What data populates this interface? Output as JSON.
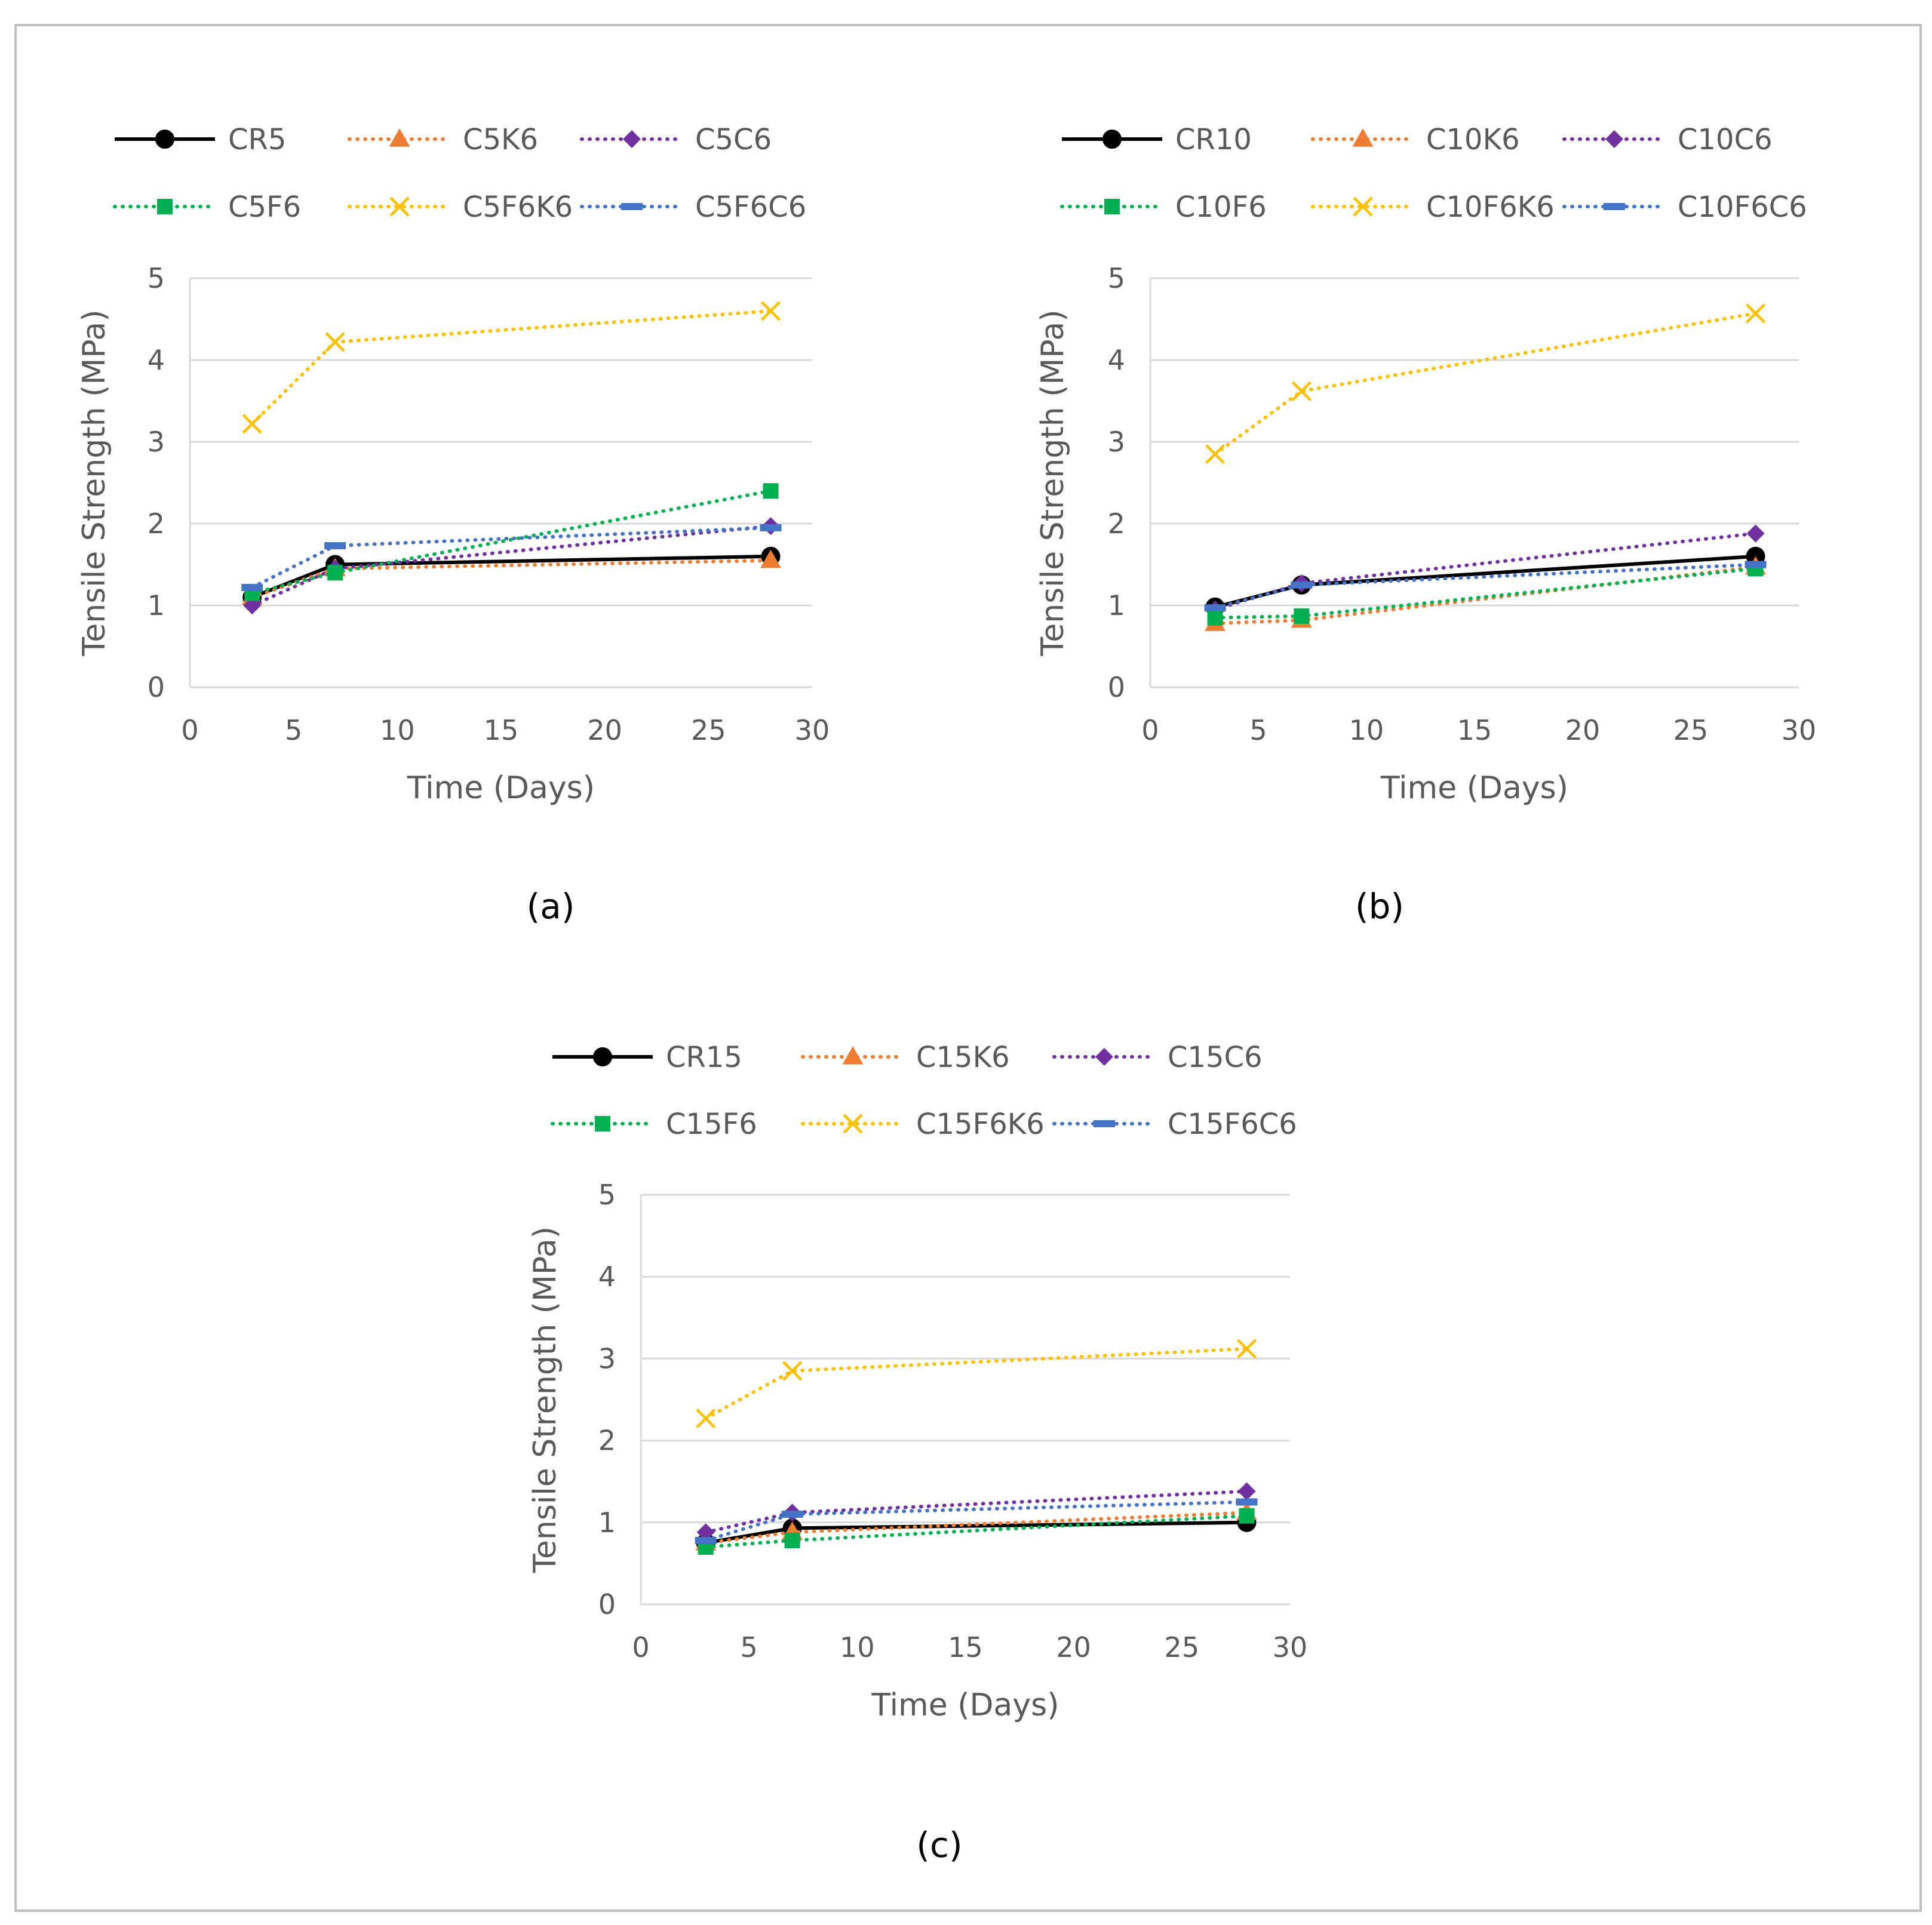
{
  "figure": {
    "border_color": "#bfbfbf"
  },
  "chart_data": [
    {
      "type": "line",
      "panel_label": "(a)",
      "xlabel": "Time (Days)",
      "ylabel": "Tensile Strength (MPa)",
      "xlim": [
        0,
        30
      ],
      "ylim": [
        0,
        5
      ],
      "xticks": [
        0,
        5,
        10,
        15,
        20,
        25,
        30
      ],
      "yticks": [
        0,
        1,
        2,
        3,
        4,
        5
      ],
      "grid": true,
      "legend_position": "top",
      "x": [
        3,
        7,
        28
      ],
      "series": [
        {
          "name": "CR5",
          "values": [
            1.1,
            1.5,
            1.6
          ],
          "color": "#000000",
          "style": "solid",
          "marker": "circle"
        },
        {
          "name": "C5K6",
          "values": [
            1.1,
            1.45,
            1.55
          ],
          "color": "#ed7d31",
          "style": "dotted",
          "marker": "triangle"
        },
        {
          "name": "C5C6",
          "values": [
            1.0,
            1.45,
            1.97
          ],
          "color": "#7030a0",
          "style": "dotted",
          "marker": "diamond"
        },
        {
          "name": "C5F6",
          "values": [
            1.15,
            1.4,
            2.4
          ],
          "color": "#00b050",
          "style": "dotted",
          "marker": "square"
        },
        {
          "name": "C5F6K6",
          "values": [
            3.22,
            4.22,
            4.6
          ],
          "color": "#ffc000",
          "style": "dotted",
          "marker": "x"
        },
        {
          "name": "C5F6C6",
          "values": [
            1.22,
            1.73,
            1.95
          ],
          "color": "#4472c4",
          "style": "dotted",
          "marker": "dash"
        }
      ]
    },
    {
      "type": "line",
      "panel_label": "(b)",
      "xlabel": "Time (Days)",
      "ylabel": "Tensile Strength (MPa)",
      "xlim": [
        0,
        30
      ],
      "ylim": [
        0,
        5
      ],
      "xticks": [
        0,
        5,
        10,
        15,
        20,
        25,
        30
      ],
      "yticks": [
        0,
        1,
        2,
        3,
        4,
        5
      ],
      "grid": true,
      "legend_position": "top",
      "x": [
        3,
        7,
        28
      ],
      "series": [
        {
          "name": "CR10",
          "values": [
            0.98,
            1.25,
            1.6
          ],
          "color": "#000000",
          "style": "solid",
          "marker": "circle"
        },
        {
          "name": "C10K6",
          "values": [
            0.78,
            0.82,
            1.47
          ],
          "color": "#ed7d31",
          "style": "dotted",
          "marker": "triangle"
        },
        {
          "name": "C10C6",
          "values": [
            0.95,
            1.27,
            1.88
          ],
          "color": "#7030a0",
          "style": "dotted",
          "marker": "diamond"
        },
        {
          "name": "C10F6",
          "values": [
            0.85,
            0.87,
            1.45
          ],
          "color": "#00b050",
          "style": "dotted",
          "marker": "square"
        },
        {
          "name": "C10F6K6",
          "values": [
            2.85,
            3.62,
            4.57
          ],
          "color": "#ffc000",
          "style": "dotted",
          "marker": "x"
        },
        {
          "name": "C10F6C6",
          "values": [
            0.97,
            1.25,
            1.5
          ],
          "color": "#4472c4",
          "style": "dotted",
          "marker": "dash"
        }
      ]
    },
    {
      "type": "line",
      "panel_label": "(c)",
      "xlabel": "Time (Days)",
      "ylabel": "Tensile Strength (MPa)",
      "xlim": [
        0,
        30
      ],
      "ylim": [
        0,
        5
      ],
      "xticks": [
        0,
        5,
        10,
        15,
        20,
        25,
        30
      ],
      "yticks": [
        0,
        1,
        2,
        3,
        4,
        5
      ],
      "grid": true,
      "legend_position": "top",
      "x": [
        3,
        7,
        28
      ],
      "series": [
        {
          "name": "CR15",
          "values": [
            0.75,
            0.93,
            1.0
          ],
          "color": "#000000",
          "style": "solid",
          "marker": "circle"
        },
        {
          "name": "C15K6",
          "values": [
            0.75,
            0.88,
            1.12
          ],
          "color": "#ed7d31",
          "style": "dotted",
          "marker": "triangle"
        },
        {
          "name": "C15C6",
          "values": [
            0.88,
            1.12,
            1.38
          ],
          "color": "#7030a0",
          "style": "dotted",
          "marker": "diamond"
        },
        {
          "name": "C15F6",
          "values": [
            0.7,
            0.78,
            1.08
          ],
          "color": "#00b050",
          "style": "dotted",
          "marker": "square"
        },
        {
          "name": "C15F6K6",
          "values": [
            2.27,
            2.85,
            3.12
          ],
          "color": "#ffc000",
          "style": "dotted",
          "marker": "x"
        },
        {
          "name": "C15F6C6",
          "values": [
            0.78,
            1.1,
            1.25
          ],
          "color": "#4472c4",
          "style": "dotted",
          "marker": "dash"
        }
      ]
    }
  ]
}
